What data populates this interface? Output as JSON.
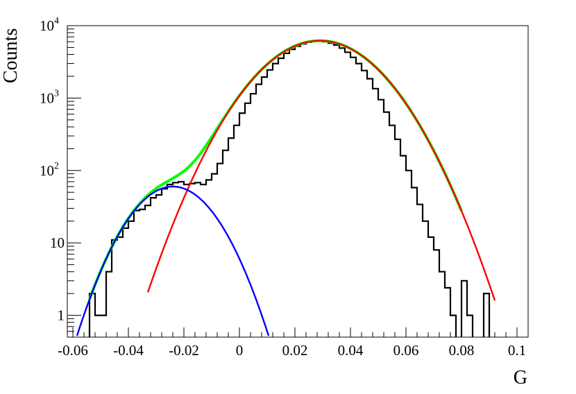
{
  "chart_data": {
    "type": "line",
    "title": "",
    "xlabel": "G",
    "ylabel": "Counts",
    "xlim": [
      -0.062,
      0.104
    ],
    "ylim": [
      0.5,
      10000
    ],
    "y_scale": "log",
    "grid": false,
    "legend": "none",
    "x_ticks": [
      {
        "value": -0.06,
        "label": "-0.06"
      },
      {
        "value": -0.04,
        "label": "-0.04"
      },
      {
        "value": -0.02,
        "label": "-0.02"
      },
      {
        "value": 0,
        "label": "0"
      },
      {
        "value": 0.02,
        "label": "0.02"
      },
      {
        "value": 0.04,
        "label": "0.04"
      },
      {
        "value": 0.06,
        "label": "0.06"
      },
      {
        "value": 0.08,
        "label": "0.08"
      },
      {
        "value": 0.1,
        "label": "0.1"
      }
    ],
    "y_ticks": [
      {
        "value": 1,
        "base": "1",
        "sup": ""
      },
      {
        "value": 10,
        "base": "10",
        "sup": ""
      },
      {
        "value": 100,
        "base": "10",
        "sup": "2"
      },
      {
        "value": 1000,
        "base": "10",
        "sup": "3"
      },
      {
        "value": 10000,
        "base": "10",
        "sup": "4"
      }
    ],
    "colors": {
      "histogram": "#000000",
      "gauss_main": "#ff0000",
      "gauss_tail": "#0000ff",
      "total_fit": "#00ff00"
    },
    "histogram": {
      "bin_width": 0.002,
      "x_start": -0.056,
      "counts": [
        0.3,
        2,
        1,
        1,
        4,
        11,
        12,
        16,
        20,
        28,
        29,
        33,
        42,
        46,
        56,
        64,
        68,
        70,
        64,
        66,
        68,
        64,
        74,
        90,
        125,
        190,
        280,
        420,
        620,
        850,
        1150,
        1550,
        1950,
        2450,
        3000,
        3550,
        4150,
        4700,
        5200,
        5600,
        5900,
        6150,
        6150,
        6000,
        5750,
        5400,
        4900,
        4300,
        3650,
        3000,
        2400,
        1850,
        1350,
        950,
        640,
        420,
        270,
        160,
        100,
        58,
        34,
        20,
        12,
        8,
        4,
        2.4,
        1,
        0.3,
        3,
        1,
        0.3,
        0.3,
        2,
        0.3,
        0.3,
        0.3,
        0.3
      ]
    },
    "series": [
      {
        "id": "gauss_main",
        "mean": 0.029,
        "sigma": 0.0155,
        "amplitude": 6200,
        "x_range": [
          -0.033,
          0.092
        ]
      },
      {
        "id": "gauss_tail",
        "mean": -0.024,
        "sigma": 0.0112,
        "amplitude": 60,
        "x_range": [
          -0.0585,
          0.0105
        ]
      },
      {
        "id": "total_fit",
        "x_range": [
          -0.054,
          0.08
        ]
      }
    ]
  }
}
